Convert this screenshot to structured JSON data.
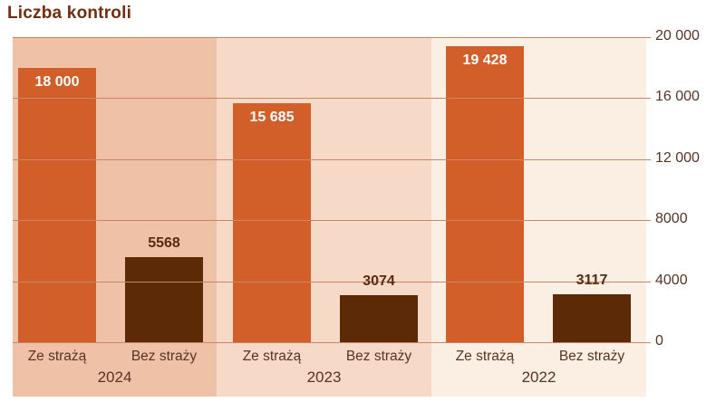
{
  "title": "Liczba kontroli",
  "colors": {
    "bar_primary": "#d25f2a",
    "bar_secondary": "#5d2a08",
    "band_2024": "#efc2a7",
    "band_2023": "#f6d9c7",
    "band_2022": "#fbefe3",
    "gridline": "#c98565",
    "title_text": "#6f2e10",
    "axis_text": "#573425",
    "value_on_bar": "#ffffff",
    "value_above_bar": "#5c2a0d"
  },
  "chart_data": {
    "type": "bar",
    "title": "Liczba kontroli",
    "categories": [
      "Ze strażą",
      "Bez straży"
    ],
    "groups": [
      {
        "year": "2024",
        "values": [
          18000,
          5568
        ],
        "value_labels": [
          "18 000",
          "5568"
        ]
      },
      {
        "year": "2023",
        "values": [
          15685,
          3074
        ],
        "value_labels": [
          "15 685",
          "3074"
        ]
      },
      {
        "year": "2022",
        "values": [
          19428,
          3117
        ],
        "value_labels": [
          "19 428",
          "3117"
        ]
      }
    ],
    "series": [
      {
        "name": "Ze strażą",
        "values": [
          18000,
          15685,
          19428
        ]
      },
      {
        "name": "Bez straży",
        "values": [
          5568,
          3074,
          3117
        ]
      }
    ],
    "ylim": [
      0,
      20000
    ],
    "yticks": [
      0,
      4000,
      8000,
      12000,
      16000,
      20000
    ],
    "ytick_labels": [
      "0",
      "4000",
      "8000",
      "12 000",
      "16 000",
      "20 000"
    ],
    "y_axis_side": "right",
    "grid": true,
    "legend": false
  }
}
